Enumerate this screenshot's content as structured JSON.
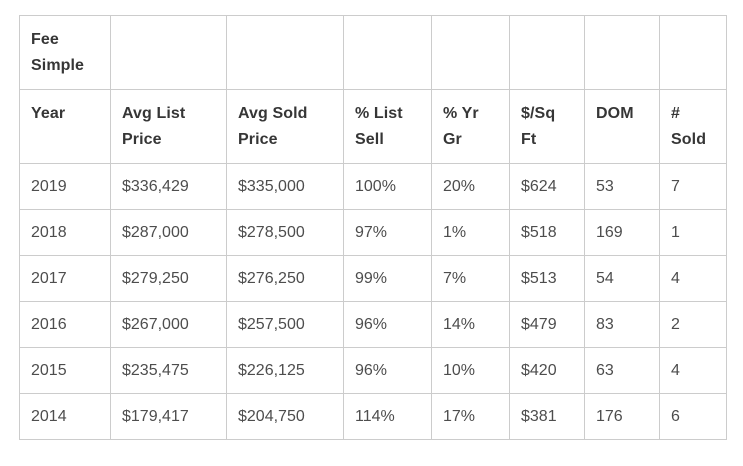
{
  "chart_data": {
    "type": "table",
    "title": "Fee Simple",
    "columns": [
      "Year",
      "Avg List Price",
      "Avg Sold Price",
      "% List Sell",
      "% Yr Gr",
      "$/Sq Ft",
      "DOM",
      "# Sold"
    ],
    "rows": [
      [
        "2019",
        "$336,429",
        "$335,000",
        "100%",
        "20%",
        "$624",
        "53",
        "7"
      ],
      [
        "2018",
        "$287,000",
        "$278,500",
        "97%",
        "1%",
        "$518",
        "169",
        "1"
      ],
      [
        "2017",
        "$279,250",
        "$276,250",
        "99%",
        "7%",
        "$513",
        "54",
        "4"
      ],
      [
        "2016",
        "$267,000",
        "$257,500",
        "96%",
        "14%",
        "$479",
        "83",
        "2"
      ],
      [
        "2015",
        "$235,475",
        "$226,125",
        "96%",
        "10%",
        "$420",
        "63",
        "4"
      ],
      [
        "2014",
        "$179,417",
        "$204,750",
        "114%",
        "17%",
        "$381",
        "176",
        "6"
      ]
    ]
  },
  "colors": {
    "background": "#ffffff",
    "border": "#cccccc",
    "header_text": "#363636",
    "body_text": "#4d4d4d"
  }
}
